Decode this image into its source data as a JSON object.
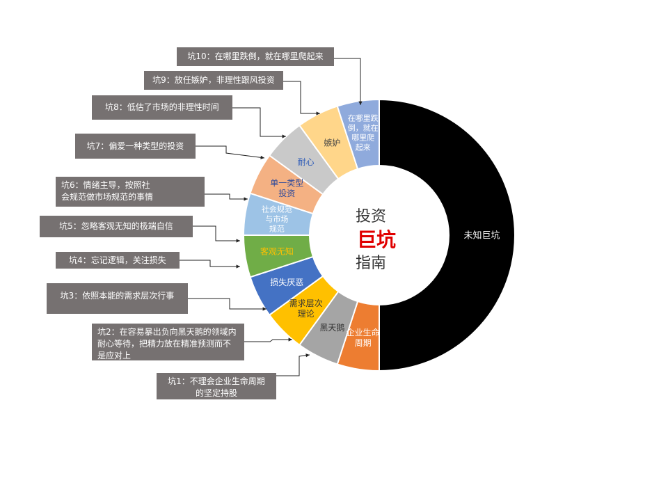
{
  "chart_data": {
    "type": "pie",
    "donut": true,
    "categories": [
      "未知巨坑",
      "企业生命周期",
      "黑天鹅",
      "需求层次理论",
      "损失厌恶",
      "客观无知",
      "社会规范与市场规范",
      "单一类型投资",
      "耐心",
      "嫉妒",
      "在哪里跌倒，就在哪里爬起来"
    ],
    "values": [
      10,
      1,
      1,
      1,
      1,
      1,
      1,
      1,
      1,
      1,
      1
    ],
    "slice_labels": [
      "未知巨坑",
      "企业生命\n周期",
      "黑天鹅",
      "需求层次\n理论",
      "损失厌恶",
      "客观无知",
      "社会规范\n与市场\n规范",
      "单一类型\n投资",
      "耐心",
      "嫉妒",
      "在哪里跌\n倒，就在\n哪里爬\n起来"
    ],
    "colors": [
      "#000000",
      "#ED7D31",
      "#A5A5A5",
      "#FFC000",
      "#4472C4",
      "#70AD47",
      "#9DC3E6",
      "#F4B183",
      "#C9C9C9",
      "#FFD68A",
      "#8FAADC"
    ],
    "label_colors": [
      "#ffffff",
      "#ffffff",
      "#333333",
      "#333333",
      "#ffffff",
      "#FFC000",
      "#ffffff",
      "#2E4A9B",
      "#2E5CB8",
      "#444444",
      "#ffffff"
    ],
    "center_title": [
      "投资",
      "巨坑",
      "指南"
    ]
  },
  "callouts": [
    "坑1：不理会企业生命周期\n的坚定持股",
    "坑2：在容易暴出负向黑天鹅的领域内\n耐心等待，把精力放在精准预测而不\n是应对上",
    "坑3：依照本能的需求层次行事",
    "坑4：忘记逻辑，关注损失",
    "坑5：忽略客观无知的极端自信",
    "坑6：情绪主导，按照社\n会规范做市场规范的事情",
    "坑7：偏爱一种类型的投资",
    "坑8：低估了市场的非理性时间",
    "坑9：放任嫉妒，非理性跟风投资",
    "坑10：在哪里跌倒，就在哪里爬起来"
  ]
}
